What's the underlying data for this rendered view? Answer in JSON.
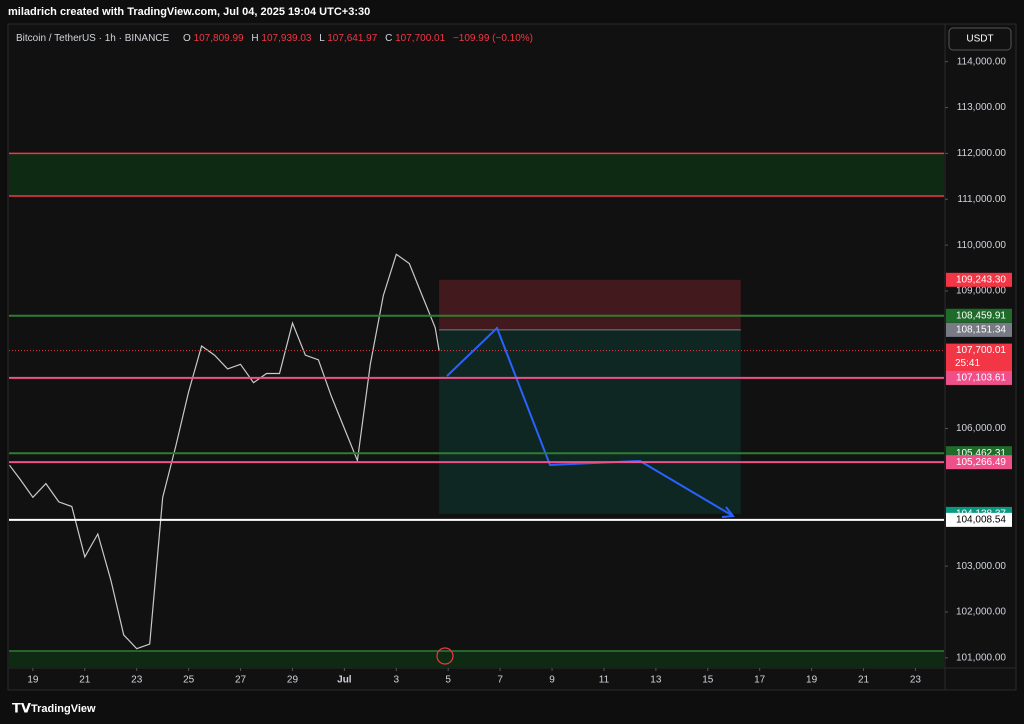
{
  "header": {
    "author_line": "miladrich created with TradingView.com, Jul 04, 2025 19:04 UTC+3:30"
  },
  "legend": {
    "symbol": "Bitcoin / TetherUS · 1h · BINANCE",
    "o_key": "O",
    "o": "107,809.99",
    "h_key": "H",
    "h": "107,939.03",
    "l_key": "L",
    "l": "107,641.97",
    "c_key": "C",
    "c": "107,700.01",
    "change": "−109.99 (−0.10%)"
  },
  "currency_button": "USDT",
  "chart": {
    "ylim": [
      100800,
      114800
    ],
    "xlim": [
      -0.92,
      35.1
    ],
    "yticks": [
      {
        "value": 114000,
        "label": "114,000.00"
      },
      {
        "value": 113000,
        "label": "113,000.00"
      },
      {
        "value": 112000,
        "label": "112,000.00"
      },
      {
        "value": 111000,
        "label": "111,000.00"
      },
      {
        "value": 110000,
        "label": "110,000.00"
      },
      {
        "value": 109000,
        "label": "109,000.00"
      },
      {
        "value": 106000,
        "label": "106,000.00"
      },
      {
        "value": 103000,
        "label": "103,000.00"
      },
      {
        "value": 102000,
        "label": "102,000.00"
      },
      {
        "value": 101000,
        "label": "101,000.00"
      }
    ],
    "xticks": [
      {
        "value": 0,
        "label": "19"
      },
      {
        "value": 2,
        "label": "21"
      },
      {
        "value": 4,
        "label": "23"
      },
      {
        "value": 6,
        "label": "25"
      },
      {
        "value": 8,
        "label": "27"
      },
      {
        "value": 10,
        "label": "29"
      },
      {
        "value": 12,
        "label": "Jul"
      },
      {
        "value": 14,
        "label": "3"
      },
      {
        "value": 16,
        "label": "5"
      },
      {
        "value": 18,
        "label": "7"
      },
      {
        "value": 20,
        "label": "9"
      },
      {
        "value": 22,
        "label": "11"
      },
      {
        "value": 24,
        "label": "13"
      },
      {
        "value": 26,
        "label": "15"
      },
      {
        "value": 28,
        "label": "17"
      },
      {
        "value": 30,
        "label": "19"
      },
      {
        "value": 32,
        "label": "21"
      },
      {
        "value": 34,
        "label": "23"
      }
    ],
    "price": {
      "color": "#c9c9c9",
      "x": [
        -0.9,
        -0.5,
        0,
        0.5,
        1,
        1.5,
        2,
        2.5,
        3,
        3.5,
        4,
        4.5,
        5,
        5.5,
        6,
        6.5,
        7,
        7.5,
        8,
        8.5,
        9,
        9.5,
        10,
        10.5,
        11,
        11.5,
        12,
        12.5,
        13,
        13.5,
        14,
        14.5,
        15,
        15.5,
        15.65
      ],
      "values": [
        105200,
        104900,
        104500,
        104800,
        104400,
        104300,
        103200,
        103700,
        102700,
        101500,
        101200,
        101300,
        104500,
        105600,
        106800,
        107800,
        107600,
        107300,
        107400,
        107000,
        107200,
        107200,
        108300,
        107600,
        107500,
        106700,
        106000,
        105300,
        107400,
        108900,
        109800,
        109600,
        108900,
        108200,
        107700.01
      ]
    },
    "zones": [
      {
        "from": 111070,
        "to": 112000,
        "color": "#0f2a12"
      },
      {
        "from": 100800,
        "to": 101150,
        "color": "#0f2a12"
      }
    ],
    "lines": [
      {
        "value": 112000,
        "color": "#f23645"
      },
      {
        "value": 111070,
        "color": "#f23645"
      },
      {
        "value": 101150,
        "color": "#2e7d32"
      }
    ],
    "levels": [
      {
        "value": 109243.3,
        "label": "109,243.30",
        "bg": "#f23645",
        "fg": "#ffffff"
      },
      {
        "value": 108459.91,
        "label": "108,459.91",
        "bg": "#1e6b2a",
        "fg": "#ffffff",
        "line": "#2e7d32"
      },
      {
        "value": 108151.34,
        "label": "108,151.34",
        "bg": "#787b86",
        "fg": "#ffffff"
      },
      {
        "value": 107700.01,
        "label": "107,700.01",
        "bg": "#f23645",
        "fg": "#ffffff",
        "sub": "25:41",
        "dotted": "#f23645"
      },
      {
        "value": 107103.61,
        "label": "107,103.61",
        "bg": "#f0508a",
        "fg": "#ffffff",
        "line": "#f0508a"
      },
      {
        "value": 105462.31,
        "label": "105,462.31",
        "bg": "#1e6b2a",
        "fg": "#ffffff",
        "line": "#2e7d32"
      },
      {
        "value": 105266.49,
        "label": "105,266.49",
        "bg": "#f0508a",
        "fg": "#ffffff",
        "line": "#f0508a"
      },
      {
        "value": 104138.37,
        "label": "104,138.37",
        "bg": "#089981",
        "fg": "#ffffff"
      },
      {
        "value": 104008.54,
        "label": "104,008.54",
        "bg": "#ffffff",
        "fg": "#000000",
        "line": "#ffffff"
      }
    ],
    "position": {
      "x_from": 15.65,
      "x_to": 27.27,
      "stop": 109243.3,
      "entry": 108151.34,
      "target": 104138.37
    }
  },
  "footer": {
    "brand": "TradingView"
  }
}
